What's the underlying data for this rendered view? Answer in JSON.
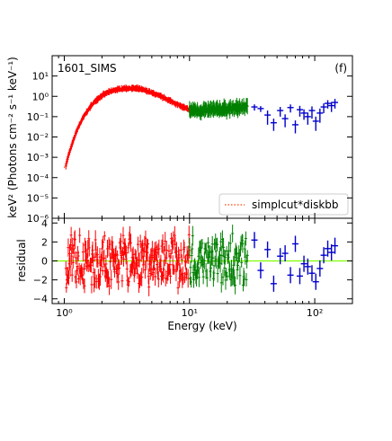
{
  "chart_data": [
    {
      "type": "scatter",
      "panel": "spectrum",
      "panel_label": "1601_SIMS",
      "corner_label": "(f)",
      "xlabel": "",
      "ylabel": "keV² (Photons cm⁻² s⁻¹ keV⁻¹)",
      "xscale": "log",
      "yscale": "log",
      "xlim": [
        0.8,
        200
      ],
      "ylim": [
        1e-06,
        100
      ],
      "x_ticks": [
        1,
        10,
        100
      ],
      "x_tick_labels": [
        "10⁰",
        "10¹",
        "10²"
      ],
      "y_ticks": [
        1e-06,
        1e-05,
        0.0001,
        0.001,
        0.01,
        0.1,
        1,
        10
      ],
      "y_tick_labels": [
        "10⁻⁶",
        "10⁻⁵",
        "10⁻⁴",
        "10⁻³",
        "10⁻²",
        "10⁻¹",
        "10⁰",
        "10¹"
      ],
      "legend": {
        "position": "lower-right",
        "entries": [
          {
            "label": "simplcut*diskbb",
            "style": "dotted",
            "color": "#ff4500"
          }
        ]
      },
      "series": [
        {
          "color": "#ff0000",
          "x": [
            1.03,
            1.06,
            1.1,
            1.15,
            1.2,
            1.25,
            1.3,
            1.4,
            1.5,
            1.6,
            1.7,
            1.8,
            2.0,
            2.2,
            2.5,
            2.8,
            3.0,
            3.5,
            4.0,
            4.5,
            5.0,
            6.0,
            7.0,
            8.0,
            9.0,
            10.0
          ],
          "y": [
            0.0004,
            0.0008,
            0.0018,
            0.004,
            0.009,
            0.018,
            0.032,
            0.08,
            0.16,
            0.28,
            0.45,
            0.65,
            1.1,
            1.5,
            2.0,
            2.3,
            2.45,
            2.5,
            2.3,
            1.9,
            1.5,
            0.95,
            0.6,
            0.4,
            0.28,
            0.22
          ]
        },
        {
          "color": "#008000",
          "x": [
            10,
            11,
            12,
            13,
            14,
            15,
            16,
            17,
            18,
            19,
            20,
            21,
            22,
            23,
            24,
            25,
            26,
            27,
            28,
            29
          ],
          "y": [
            0.2,
            0.21,
            0.19,
            0.22,
            0.2,
            0.23,
            0.21,
            0.24,
            0.22,
            0.25,
            0.23,
            0.26,
            0.24,
            0.27,
            0.25,
            0.3,
            0.27,
            0.33,
            0.29,
            0.3
          ]
        },
        {
          "color": "#0000cd",
          "x": [
            33,
            37,
            42,
            47,
            53,
            58,
            64,
            70,
            76,
            82,
            88,
            95,
            102,
            110,
            118,
            127,
            136,
            145
          ],
          "y": [
            0.3,
            0.25,
            0.12,
            0.05,
            0.2,
            0.08,
            0.28,
            0.04,
            0.22,
            0.15,
            0.1,
            0.2,
            0.06,
            0.15,
            0.3,
            0.45,
            0.35,
            0.5
          ],
          "y_err": [
            0.1,
            0.08,
            0.08,
            0.03,
            0.1,
            0.05,
            0.12,
            0.025,
            0.12,
            0.08,
            0.06,
            0.12,
            0.04,
            0.1,
            0.15,
            0.2,
            0.18,
            0.25
          ]
        }
      ],
      "model": {
        "label": "simplcut*diskbb",
        "x": [
          1.0,
          1.1,
          1.2,
          1.3,
          1.4,
          1.6,
          1.8,
          2.0,
          2.3,
          2.6,
          3.0,
          3.5,
          4.0,
          5.0,
          6.0,
          7.0,
          8.0,
          10.0
        ],
        "y": [
          0.0003,
          0.0015,
          0.008,
          0.03,
          0.08,
          0.28,
          0.65,
          1.1,
          1.7,
          2.15,
          2.45,
          2.5,
          2.3,
          1.5,
          0.95,
          0.6,
          0.4,
          0.22
        ]
      }
    },
    {
      "type": "scatter",
      "panel": "residual",
      "xlabel": "Energy (keV)",
      "ylabel": "residual",
      "xscale": "log",
      "xlim": [
        0.8,
        200
      ],
      "ylim": [
        -4.5,
        4.5
      ],
      "y_ticks": [
        -4,
        -2,
        0,
        2,
        4
      ],
      "y_tick_labels": [
        "−4",
        "−2",
        "0",
        "2",
        "4"
      ],
      "zero_line_color": "#7fff00",
      "series": [
        {
          "color": "#ff0000",
          "x_range": [
            1.03,
            10.0
          ]
        },
        {
          "color": "#008000",
          "x_range": [
            10.0,
            29.0
          ]
        },
        {
          "color": "#0000cd",
          "x": [
            33,
            37,
            42,
            47,
            53,
            58,
            64,
            70,
            76,
            82,
            88,
            95,
            102,
            110,
            118,
            127,
            136,
            145
          ],
          "y": [
            2.2,
            -1.0,
            1.2,
            -2.4,
            0.5,
            0.8,
            -1.5,
            1.8,
            -1.6,
            -0.3,
            -0.6,
            -1.3,
            -2.2,
            -0.8,
            0.6,
            1.3,
            0.9,
            1.6
          ]
        }
      ]
    }
  ]
}
